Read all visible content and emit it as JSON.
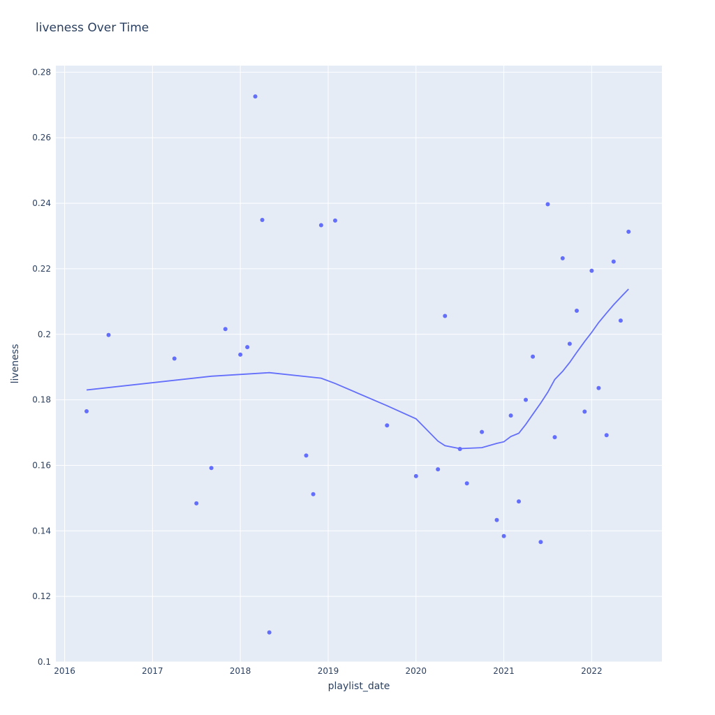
{
  "chart_data": {
    "type": "scatter",
    "title": "liveness Over Time",
    "xlabel": "playlist_date",
    "ylabel": "liveness",
    "x_ticks": [
      "2016",
      "2017",
      "2018",
      "2019",
      "2020",
      "2021",
      "2022"
    ],
    "y_ticks": [
      "0.1",
      "0.12",
      "0.14",
      "0.16",
      "0.18",
      "0.2",
      "0.22",
      "0.24",
      "0.26",
      "0.28"
    ],
    "xlim": [
      2015.9,
      2022.8
    ],
    "ylim": [
      0.1,
      0.282
    ],
    "grid": true,
    "colors": {
      "plot_background": "#e5ecf6",
      "grid": "#ffffff",
      "series": "#636efa",
      "text": "#2a3f5f"
    },
    "series": [
      {
        "mode": "markers",
        "x": [
          2016.25,
          2016.5,
          2017.25,
          2017.5,
          2017.67,
          2017.83,
          2018.0,
          2018.08,
          2018.17,
          2018.25,
          2018.33,
          2018.75,
          2018.83,
          2018.92,
          2019.08,
          2019.67,
          2020.0,
          2020.25,
          2020.33,
          2020.5,
          2020.58,
          2020.75,
          2020.92,
          2021.0,
          2021.08,
          2021.17,
          2021.25,
          2021.33,
          2021.42,
          2021.5,
          2021.58,
          2021.67,
          2021.75,
          2021.83,
          2021.92,
          2022.0,
          2022.08,
          2022.17,
          2022.25,
          2022.33,
          2022.42
        ],
        "y": [
          0.1765,
          0.1998,
          0.1926,
          0.1484,
          0.1592,
          0.2016,
          0.1938,
          0.1961,
          0.2726,
          0.2349,
          0.109,
          0.163,
          0.1512,
          0.2333,
          0.2347,
          0.1722,
          0.1567,
          0.1588,
          0.2056,
          0.165,
          0.1545,
          0.1702,
          0.1433,
          0.1384,
          0.1752,
          0.149,
          0.18,
          0.1932,
          0.1366,
          0.2397,
          0.1686,
          0.2232,
          0.1971,
          0.2072,
          0.1764,
          0.2194,
          0.1836,
          0.1692,
          0.2222,
          0.2042,
          0.2313
        ]
      },
      {
        "mode": "lines",
        "x": [
          2016.25,
          2017.67,
          2018.33,
          2018.92,
          2019.08,
          2019.67,
          2020.0,
          2020.25,
          2020.33,
          2020.5,
          2020.75,
          2020.92,
          2021.0,
          2021.08,
          2021.17,
          2021.25,
          2021.33,
          2021.42,
          2021.5,
          2021.58,
          2021.67,
          2021.75,
          2021.83,
          2021.92,
          2022.0,
          2022.08,
          2022.17,
          2022.25,
          2022.33,
          2022.42
        ],
        "y": [
          0.183,
          0.1872,
          0.1883,
          0.1866,
          0.185,
          0.1782,
          0.1742,
          0.1674,
          0.166,
          0.1651,
          0.1654,
          0.1667,
          0.1672,
          0.1688,
          0.1698,
          0.1725,
          0.1756,
          0.179,
          0.1823,
          0.1862,
          0.1887,
          0.1914,
          0.1945,
          0.1978,
          0.2006,
          0.2036,
          0.2065,
          0.209,
          0.2113,
          0.2138
        ]
      }
    ]
  }
}
